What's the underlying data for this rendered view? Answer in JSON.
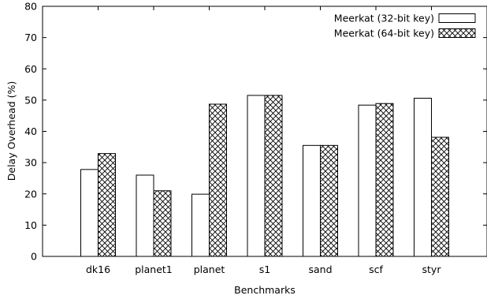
{
  "chart_data": {
    "type": "bar",
    "title": "",
    "xlabel": "Benchmarks",
    "ylabel": "Delay Overhead (%)",
    "ylim": [
      0,
      80
    ],
    "yticks": [
      0,
      10,
      20,
      30,
      40,
      50,
      60,
      70,
      80
    ],
    "grid": false,
    "legend": "top-right",
    "categories": [
      "dk16",
      "planet1",
      "planet",
      "s1",
      "sand",
      "scf",
      "styr"
    ],
    "series": [
      {
        "name": "Meerkat (32-bit key)",
        "pattern": "solid-white",
        "values": [
          27.8,
          26.0,
          19.9,
          51.5,
          35.5,
          48.4,
          50.6
        ]
      },
      {
        "name": "Meerkat (64-bit key)",
        "pattern": "crosshatch",
        "values": [
          32.9,
          21.0,
          48.7,
          51.5,
          35.5,
          48.9,
          38.1
        ]
      }
    ],
    "colors": {
      "bar_fill": "#ffffff",
      "stroke": "#000000"
    }
  }
}
